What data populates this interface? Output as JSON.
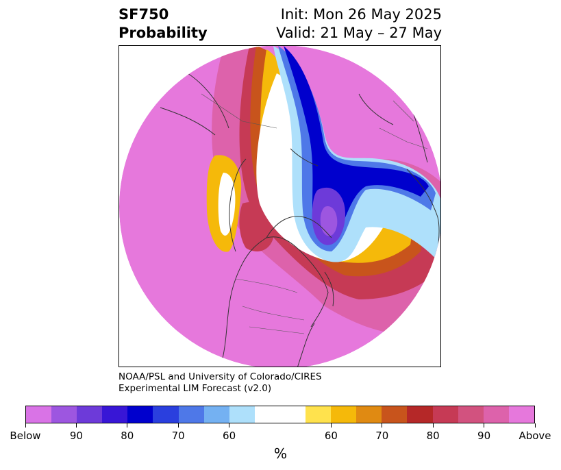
{
  "title": {
    "left_line1": "SF750",
    "left_line2": "Probability",
    "right_line1": "Init: Mon 26 May 2025",
    "right_line2": "Valid: 21 May – 27 May"
  },
  "credit": {
    "line1": "NOAA/PSL and University of Colorado/CIRES",
    "line2": "Experimental LIM Forecast (v2.0)"
  },
  "colorbar": {
    "unit": "%",
    "colors": [
      "#d973e6",
      "#9d56e0",
      "#6d3ad9",
      "#3816d6",
      "#0000cd",
      "#2a3fde",
      "#4e78e8",
      "#74b1f2",
      "#aee0fb",
      "#ffffff",
      "#ffe24d",
      "#f5b90a",
      "#e08a12",
      "#c8541c",
      "#b52828",
      "#c63a55",
      "#d2527f",
      "#dd62ab",
      "#e678dc"
    ],
    "tick_labels": [
      "Below",
      "90",
      "80",
      "70",
      "60",
      "60",
      "70",
      "80",
      "90",
      "Above"
    ]
  },
  "map": {
    "projection": "north polar stereographic",
    "field_colors": {
      "background_above": "#e678dc",
      "above_90": "#dd62ab",
      "above_80": "#c63a55",
      "above_70": "#c8541c",
      "above_60": "#f5b90a",
      "neutral": "#ffffff",
      "below_60": "#aee0fb",
      "below_70": "#4e78e8",
      "below_80": "#0000cd",
      "below_90": "#6d3ad9",
      "below_max": "#9d56e0"
    }
  }
}
